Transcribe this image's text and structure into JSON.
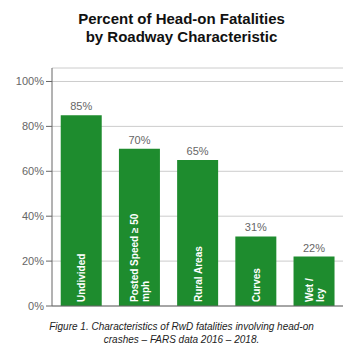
{
  "chart_data": {
    "type": "bar",
    "title": "Percent of Head-on Fatalities",
    "subtitle": "by Roadway Characteristic",
    "caption": "Figure 1. Characteristics of RwD fatalities involving head-on\ncrashes – FARS data 2016 – 2018.",
    "categories": [
      "Undivided",
      "Posted Speed ≥ 50\nmph",
      "Rural Areas",
      "Curves",
      "Wet /\nIcy"
    ],
    "values": [
      85,
      70,
      65,
      31,
      22
    ],
    "value_labels": [
      "85%",
      "70%",
      "65%",
      "31%",
      "22%"
    ],
    "data_labels": true,
    "color": "#1e8c2e",
    "ylim": [
      0,
      106
    ],
    "yticks": [
      {
        "value": 0,
        "label": "0%"
      },
      {
        "value": 20,
        "label": "20%"
      },
      {
        "value": 40,
        "label": "40%"
      },
      {
        "value": 60,
        "label": "60%"
      },
      {
        "value": 80,
        "label": "80%"
      },
      {
        "value": 100,
        "label": "100%"
      }
    ],
    "grid": true,
    "tick_labels": "y"
  }
}
